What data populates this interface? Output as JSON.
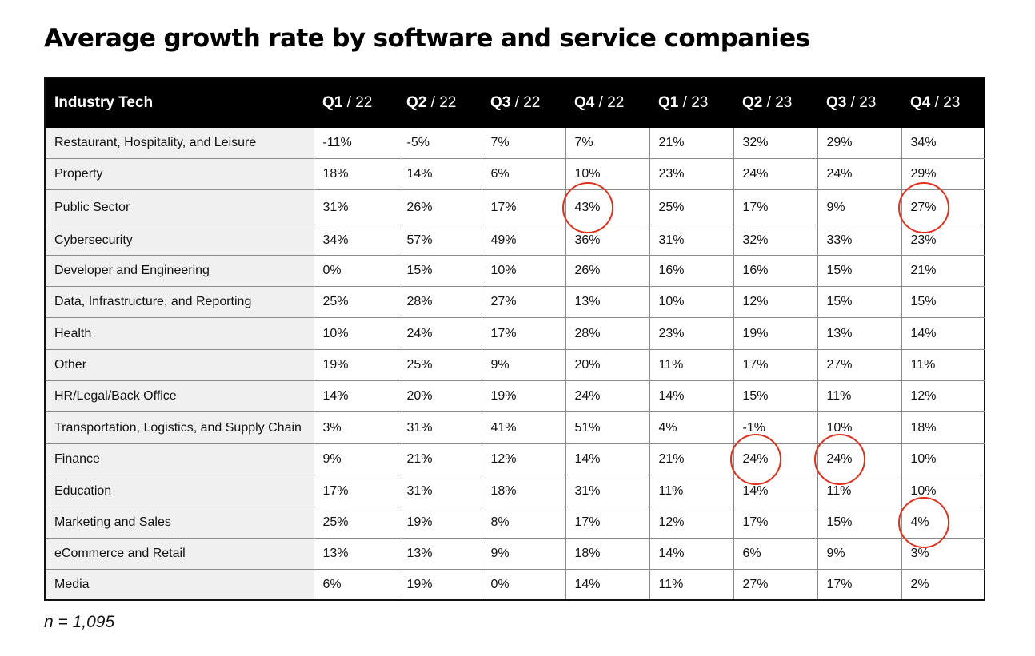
{
  "chart_data": {
    "type": "table",
    "title": "Average growth rate by software and service companies",
    "header_label": "Industry Tech",
    "columns": [
      {
        "q": "Q1",
        "yr": "22"
      },
      {
        "q": "Q2",
        "yr": "22"
      },
      {
        "q": "Q3",
        "yr": "22"
      },
      {
        "q": "Q4",
        "yr": "22"
      },
      {
        "q": "Q1",
        "yr": "23"
      },
      {
        "q": "Q2",
        "yr": "23"
      },
      {
        "q": "Q3",
        "yr": "23"
      },
      {
        "q": "Q4",
        "yr": "23"
      }
    ],
    "rows": [
      {
        "label": "Restaurant, Hospitality, and Leisure",
        "values": [
          "-11%",
          "-5%",
          "7%",
          "7%",
          "21%",
          "32%",
          "29%",
          "34%"
        ]
      },
      {
        "label": "Property",
        "values": [
          "18%",
          "14%",
          "6%",
          "10%",
          "23%",
          "24%",
          "24%",
          "29%"
        ]
      },
      {
        "label": "Public Sector",
        "values": [
          "31%",
          "26%",
          "17%",
          "43%",
          "25%",
          "17%",
          "9%",
          "27%"
        ]
      },
      {
        "label": "Cybersecurity",
        "values": [
          "34%",
          "57%",
          "49%",
          "36%",
          "31%",
          "32%",
          "33%",
          "23%"
        ]
      },
      {
        "label": "Developer and Engineering",
        "values": [
          "0%",
          "15%",
          "10%",
          "26%",
          "16%",
          "16%",
          "15%",
          "21%"
        ]
      },
      {
        "label": "Data, Infrastructure, and Reporting",
        "values": [
          "25%",
          "28%",
          "27%",
          "13%",
          "10%",
          "12%",
          "15%",
          "15%"
        ]
      },
      {
        "label": "Health",
        "values": [
          "10%",
          "24%",
          "17%",
          "28%",
          "23%",
          "19%",
          "13%",
          "14%"
        ]
      },
      {
        "label": "Other",
        "values": [
          "19%",
          "25%",
          "9%",
          "20%",
          "11%",
          "17%",
          "27%",
          "11%"
        ]
      },
      {
        "label": "HR/Legal/Back Office",
        "values": [
          "14%",
          "20%",
          "19%",
          "24%",
          "14%",
          "15%",
          "11%",
          "12%"
        ]
      },
      {
        "label": "Transportation, Logistics, and Supply Chain",
        "values": [
          "3%",
          "31%",
          "41%",
          "51%",
          "4%",
          "-1%",
          "10%",
          "18%"
        ]
      },
      {
        "label": "Finance",
        "values": [
          "9%",
          "21%",
          "12%",
          "14%",
          "21%",
          "24%",
          "24%",
          "10%"
        ]
      },
      {
        "label": "Education",
        "values": [
          "17%",
          "31%",
          "18%",
          "31%",
          "11%",
          "14%",
          "11%",
          "10%"
        ]
      },
      {
        "label": "Marketing and Sales",
        "values": [
          "25%",
          "19%",
          "8%",
          "17%",
          "12%",
          "17%",
          "15%",
          "4%"
        ]
      },
      {
        "label": "eCommerce and Retail",
        "values": [
          "13%",
          "13%",
          "9%",
          "18%",
          "14%",
          "6%",
          "9%",
          "3%"
        ]
      },
      {
        "label": "Media",
        "values": [
          "6%",
          "19%",
          "0%",
          "14%",
          "11%",
          "27%",
          "17%",
          "2%"
        ]
      }
    ],
    "highlighted_cells": [
      {
        "row": "Public Sector",
        "column": "Q4 / 22",
        "value": "43%"
      },
      {
        "row": "Public Sector",
        "column": "Q4 / 23",
        "value": "27%"
      },
      {
        "row": "Finance",
        "column": "Q2 / 23",
        "value": "24%"
      },
      {
        "row": "Finance",
        "column": "Q3 / 23",
        "value": "24%"
      },
      {
        "row": "Marketing and Sales",
        "column": "Q4 / 23",
        "value": "4%"
      }
    ],
    "highlight_color": "#e0301e",
    "note": "n = 1,095"
  }
}
